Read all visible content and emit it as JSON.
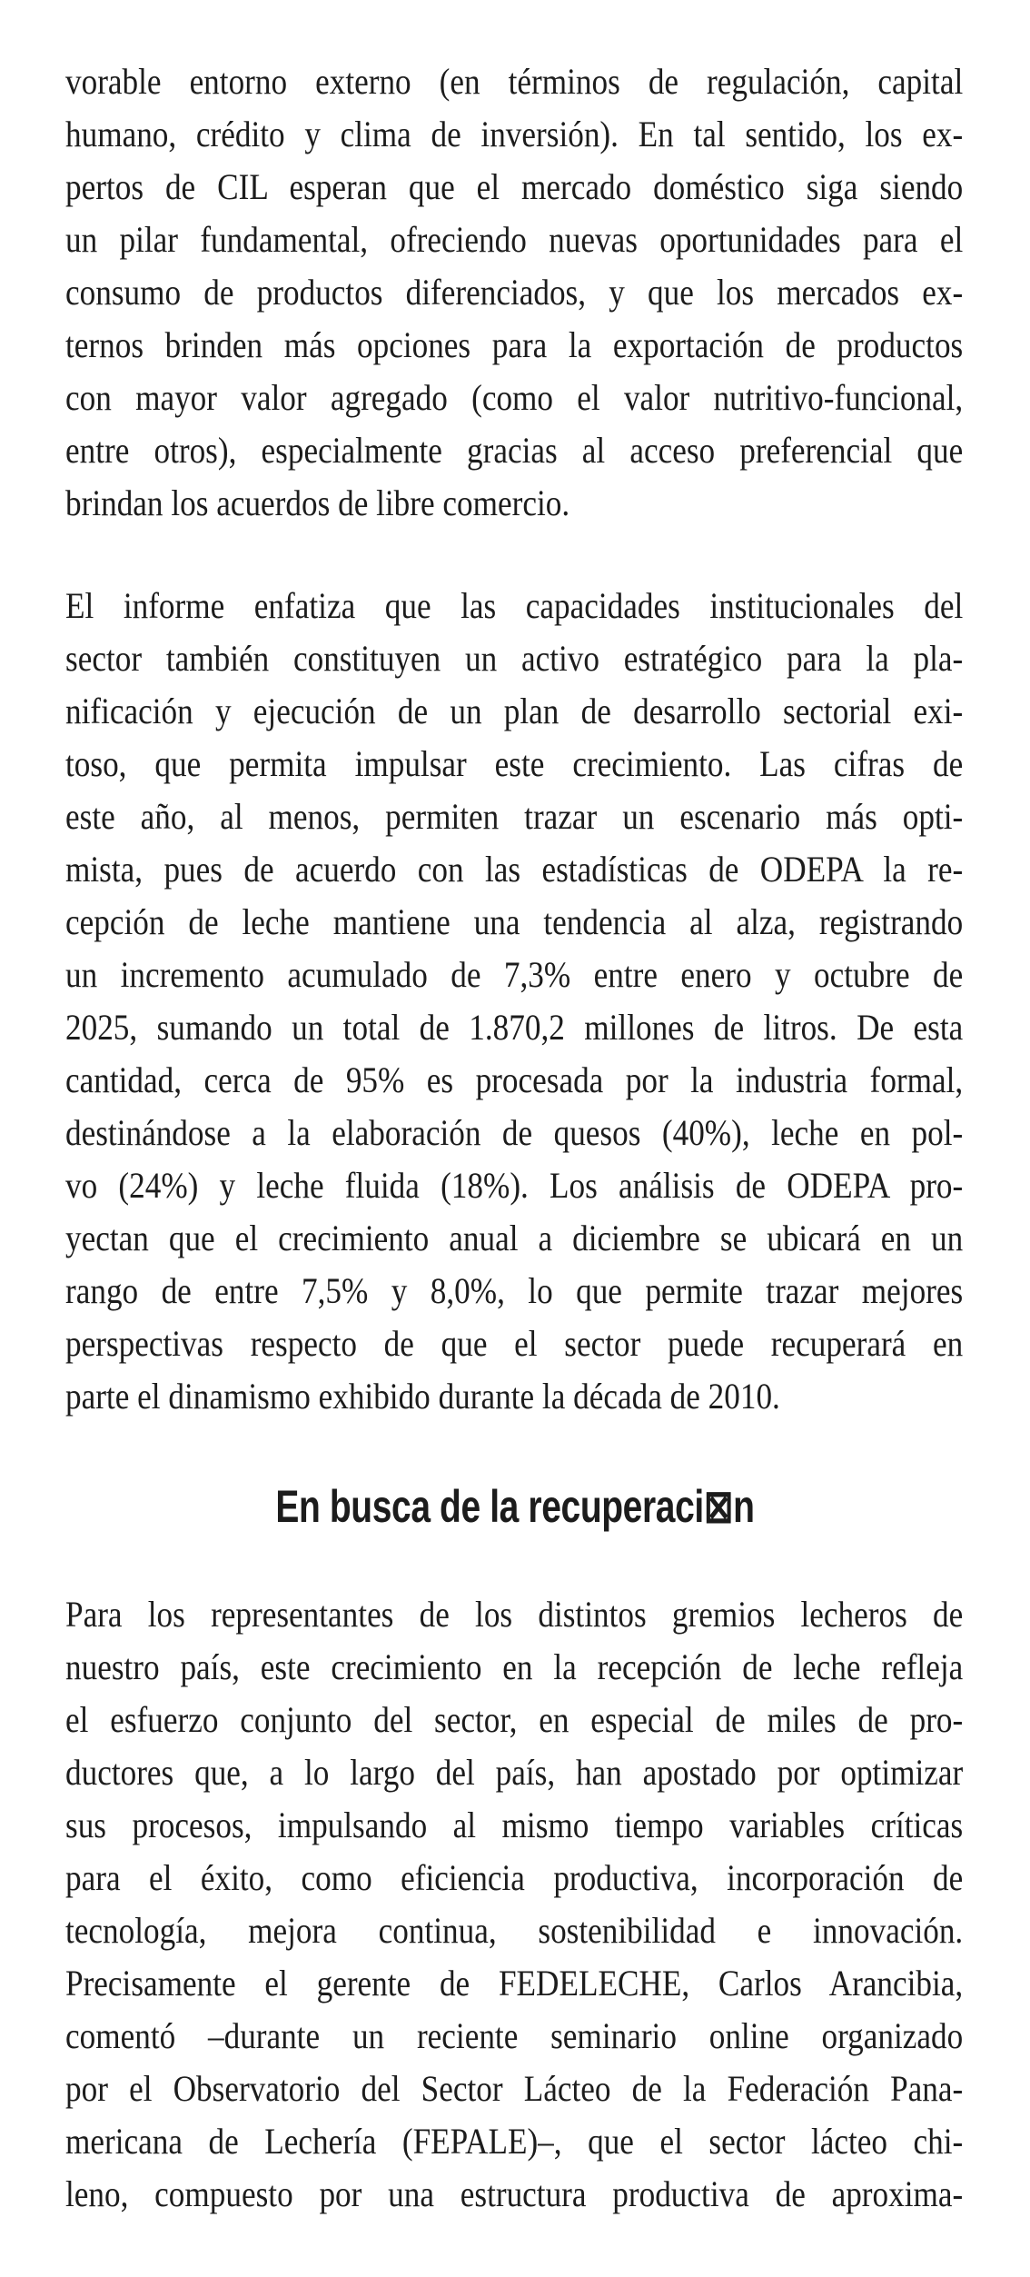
{
  "article": {
    "paragraph_1": [
      "vorable entorno externo (en términos de regulación, capital",
      "humano, crédito y clima de inversión). En tal sentido, los ex-",
      "pertos de CIL esperan que el mercado doméstico siga siendo",
      "un pilar fundamental, ofreciendo nuevas oportunidades para el",
      "consumo de productos diferenciados, y que los mercados ex-",
      "ternos brinden más opciones para la exportación de productos",
      "con mayor valor agregado (como el valor nutritivo-funcional,",
      "entre otros), especialmente gracias al acceso preferencial que",
      "brindan los acuerdos de libre comercio."
    ],
    "paragraph_2": [
      "El informe enfatiza que las capacidades institucionales del",
      "sector también constituyen un activo estratégico para la pla-",
      "nificación y ejecución de un plan de desarrollo sectorial exi-",
      "toso, que permita impulsar este crecimiento. Las cifras de",
      "este año, al menos, permiten trazar un escenario más opti-",
      "mista, pues de acuerdo con las estadísticas de ODEPA la re-",
      "cepción de leche mantiene una tendencia al alza, registrando",
      "un incremento acumulado de 7,3% entre enero y octubre de",
      "2025, sumando un total de 1.870,2 millones de litros. De esta",
      "cantidad, cerca de 95% es procesada por la industria formal,",
      "destinándose a la elaboración de quesos (40%), leche en pol-",
      "vo (24%) y leche fluida (18%). Los análisis de ODEPA pro-",
      "yectan que el crecimiento anual a diciembre se ubicará en un",
      "rango de entre 7,5% y 8,0%, lo que permite trazar mejores",
      "perspectivas respecto de que el sector puede recuperará en",
      "parte el dinamismo exhibido durante la década de 2010."
    ],
    "heading": "En busca de la recuperaci⊠n",
    "paragraph_3": [
      "Para los representantes de los distintos gremios lecheros de",
      "nuestro país, este crecimiento en la recepción de leche refleja",
      "el esfuerzo conjunto del sector, en especial de miles de pro-",
      "ductores que, a lo largo del país, han apostado por optimizar",
      "sus procesos, impulsando al mismo tiempo variables críticas",
      "para el éxito, como eficiencia productiva, incorporación de",
      "tecnología, mejora continua, sostenibilidad e innovación.",
      "Precisamente el gerente de FEDELECHE, Carlos Arancibia,",
      "comentó –durante un reciente seminario online organizado",
      "por el Observatorio del Sector Lácteo de la Federación Pana-",
      "mericana de Lechería (FEPALE)–, que el sector lácteo chi-",
      "leno, compuesto por una estructura productiva de aproxima-"
    ]
  }
}
